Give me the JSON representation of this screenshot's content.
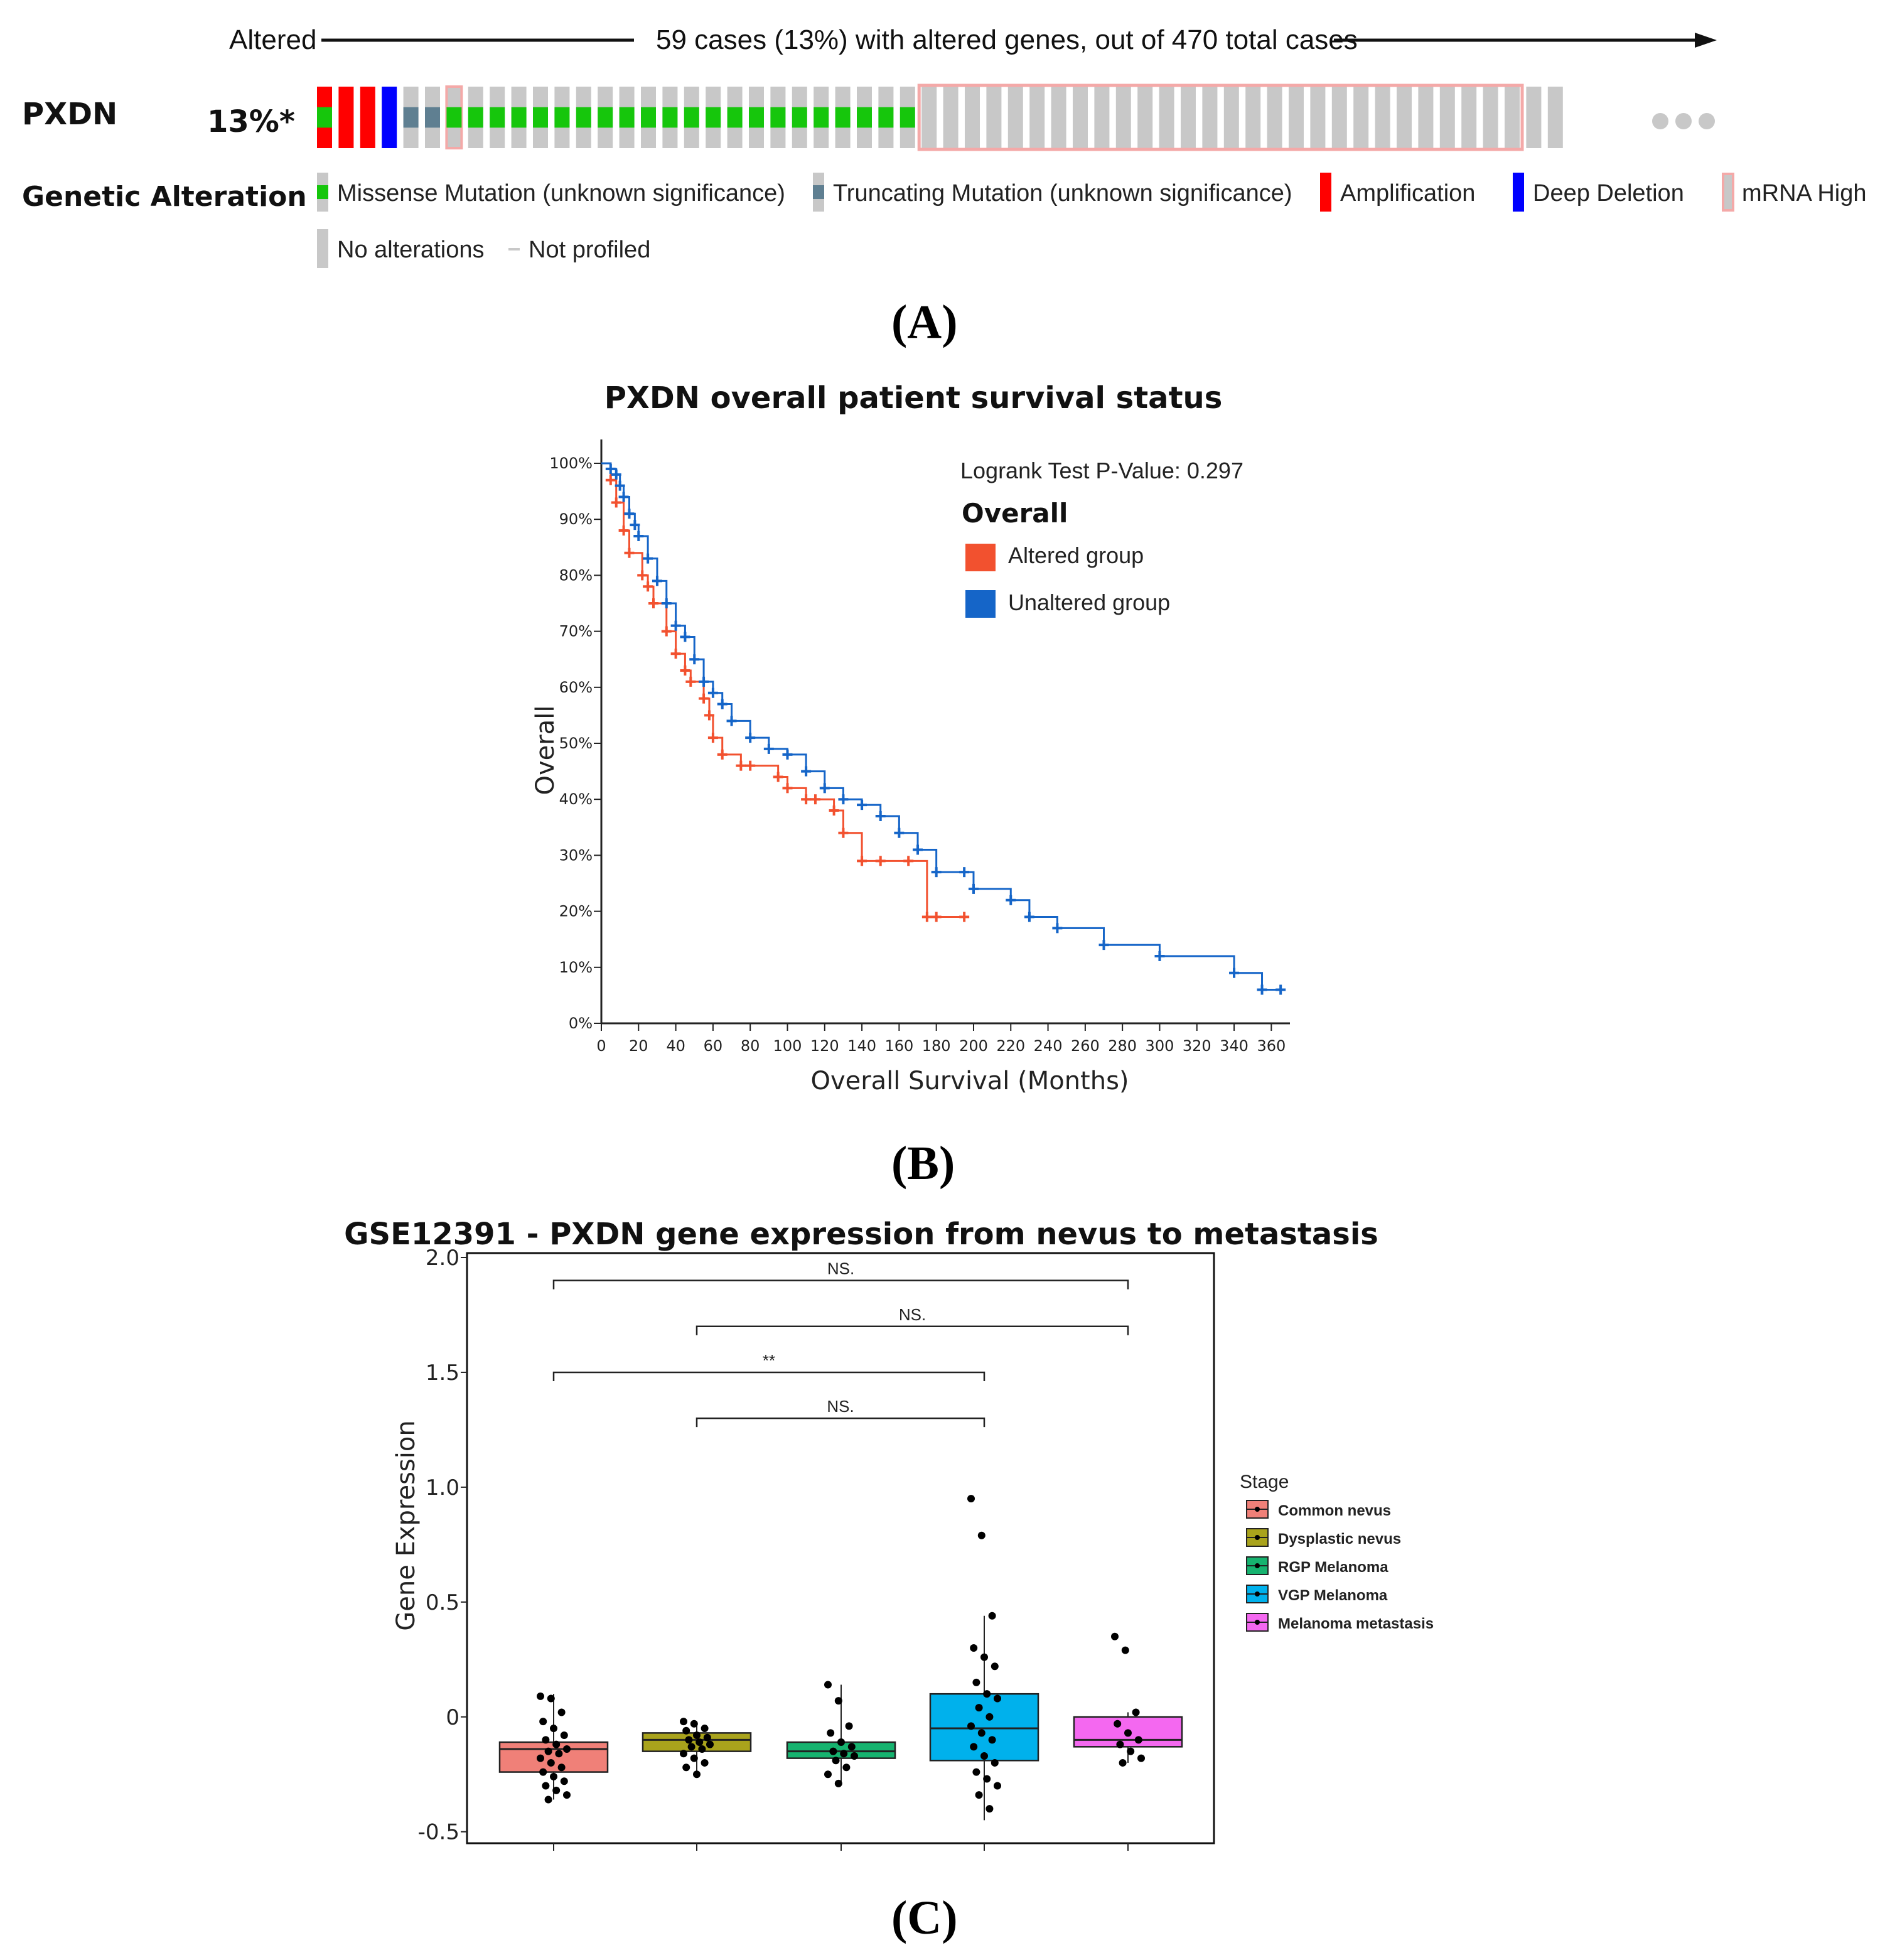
{
  "panelA": {
    "header": {
      "left": "Altered",
      "center": "59 cases (13%) with altered genes, out of 470 total cases"
    },
    "gene": "PXDN",
    "percent": "13%*",
    "section_label": "Genetic Alteration",
    "legend": [
      {
        "label": "Missense Mutation (unknown significance)",
        "kind": "missense",
        "color": "#16c60c"
      },
      {
        "label": "Truncating Mutation (unknown significance)",
        "kind": "truncating",
        "color": "#5f7f91"
      },
      {
        "label": "Amplification",
        "kind": "amplification",
        "color": "#ff0000"
      },
      {
        "label": "Deep Deletion",
        "kind": "deletion",
        "color": "#0000ff"
      },
      {
        "label": "mRNA High",
        "kind": "mrna",
        "color": "#f4a9a8"
      },
      {
        "label": "No alterations",
        "kind": "none",
        "color": "#c8c8c8"
      },
      {
        "label": "Not profiled",
        "kind": "notprofiled",
        "color": "#c8c8c8"
      }
    ],
    "track": [
      "amp_miss",
      "amp",
      "amp",
      "del",
      "trunc",
      "trunc",
      "mrna_miss",
      "miss",
      "miss",
      "miss",
      "miss",
      "miss",
      "miss",
      "miss",
      "miss",
      "miss",
      "miss",
      "miss",
      "miss",
      "miss",
      "miss",
      "miss",
      "miss",
      "miss",
      "miss",
      "miss",
      "miss",
      "miss",
      "mrna",
      "mrna",
      "mrna",
      "mrna",
      "mrna",
      "mrna",
      "mrna",
      "mrna",
      "mrna",
      "mrna",
      "mrna",
      "mrna",
      "mrna",
      "mrna",
      "mrna",
      "mrna",
      "mrna",
      "mrna",
      "mrna",
      "mrna",
      "mrna",
      "mrna",
      "mrna",
      "mrna",
      "mrna",
      "mrna",
      "mrna",
      "mrna",
      "none",
      "none"
    ],
    "label": "(A)"
  },
  "chart_data": [
    {
      "type": "line",
      "subtype": "kaplan-meier",
      "title": "PXDN overall patient survival status",
      "xlabel": "Overall Survival (Months)",
      "ylabel": "Overall",
      "xlim": [
        0,
        370
      ],
      "ylim": [
        0,
        100
      ],
      "xticks": [
        "0",
        "20",
        "40",
        "60",
        "80",
        "100",
        "120",
        "140",
        "160",
        "180",
        "200",
        "220",
        "240",
        "260",
        "280",
        "300",
        "320",
        "340",
        "360"
      ],
      "yticks": [
        "0%",
        "10%",
        "20%",
        "30%",
        "40%",
        "50%",
        "60%",
        "70%",
        "80%",
        "90%",
        "100%"
      ],
      "annotation": "Logrank Test P-Value: 0.297",
      "legend_title": "Overall",
      "series": [
        {
          "name": "Altered group",
          "color": "#f2512f",
          "x": [
            0,
            5,
            8,
            12,
            15,
            22,
            25,
            28,
            35,
            40,
            45,
            48,
            55,
            58,
            60,
            65,
            75,
            80,
            95,
            100,
            110,
            115,
            125,
            130,
            140,
            150,
            165,
            175,
            180,
            195
          ],
          "y": [
            100,
            97,
            93,
            88,
            84,
            80,
            78,
            75,
            70,
            66,
            63,
            61,
            58,
            55,
            51,
            48,
            46,
            46,
            44,
            42,
            40,
            40,
            38,
            34,
            29,
            29,
            29,
            19,
            19,
            19
          ]
        },
        {
          "name": "Unaltered group",
          "color": "#1565c8",
          "x": [
            0,
            5,
            8,
            10,
            12,
            15,
            18,
            20,
            25,
            30,
            35,
            40,
            45,
            50,
            55,
            60,
            65,
            70,
            80,
            90,
            100,
            110,
            120,
            130,
            140,
            150,
            160,
            170,
            180,
            195,
            200,
            220,
            230,
            245,
            270,
            300,
            340,
            355,
            365
          ],
          "y": [
            100,
            99,
            98,
            96,
            94,
            91,
            89,
            87,
            83,
            79,
            75,
            71,
            69,
            65,
            61,
            59,
            57,
            54,
            51,
            49,
            48,
            45,
            42,
            40,
            39,
            37,
            34,
            31,
            27,
            27,
            24,
            22,
            19,
            17,
            14,
            12,
            9,
            6,
            6
          ]
        }
      ],
      "label": "(B)"
    },
    {
      "type": "box",
      "title": "GSE12391 - PXDN gene expression from nevus to metastasis",
      "xlabel": "",
      "ylabel": "Gene Expression",
      "ylim": [
        -0.55,
        2.0
      ],
      "yticks": [
        "2.0",
        "1.5",
        "1.0",
        "0.5",
        "0",
        "-0.5"
      ],
      "legend_title": "Stage",
      "groups": [
        {
          "name": "Common nevus",
          "color": "#f08078",
          "q1": -0.24,
          "median": -0.14,
          "q3": -0.11,
          "whisker_low": -0.36,
          "whisker_high": 0.1,
          "points": [
            0.09,
            0.08,
            0.02,
            -0.02,
            -0.05,
            -0.08,
            -0.1,
            -0.12,
            -0.14,
            -0.15,
            -0.16,
            -0.18,
            -0.2,
            -0.22,
            -0.24,
            -0.26,
            -0.28,
            -0.3,
            -0.32,
            -0.34,
            -0.36
          ]
        },
        {
          "name": "Dysplastic nevus",
          "color": "#a9a31c",
          "q1": -0.15,
          "median": -0.1,
          "q3": -0.07,
          "whisker_low": -0.25,
          "whisker_high": -0.02,
          "points": [
            -0.02,
            -0.03,
            -0.05,
            -0.06,
            -0.08,
            -0.09,
            -0.1,
            -0.11,
            -0.12,
            -0.13,
            -0.14,
            -0.16,
            -0.18,
            -0.2,
            -0.22,
            -0.25
          ]
        },
        {
          "name": "RGP Melanoma",
          "color": "#16b36f",
          "q1": -0.18,
          "median": -0.15,
          "q3": -0.11,
          "whisker_low": -0.29,
          "whisker_high": 0.14,
          "points": [
            0.14,
            0.07,
            -0.04,
            -0.07,
            -0.11,
            -0.13,
            -0.15,
            -0.16,
            -0.17,
            -0.19,
            -0.22,
            -0.25,
            -0.29
          ]
        },
        {
          "name": "VGP Melanoma",
          "color": "#00b1ec",
          "q1": -0.19,
          "median": -0.05,
          "q3": 0.1,
          "whisker_low": -0.45,
          "whisker_high": 0.44,
          "points": [
            0.95,
            0.79,
            0.44,
            0.3,
            0.26,
            0.22,
            0.15,
            0.1,
            0.08,
            0.04,
            0.0,
            -0.04,
            -0.07,
            -0.1,
            -0.13,
            -0.17,
            -0.2,
            -0.24,
            -0.27,
            -0.3,
            -0.34,
            -0.4
          ]
        },
        {
          "name": "Melanoma metastasis",
          "color": "#f468f0",
          "q1": -0.13,
          "median": -0.1,
          "q3": 0.0,
          "whisker_low": -0.2,
          "whisker_high": 0.02,
          "points": [
            0.35,
            0.29,
            0.02,
            -0.03,
            -0.07,
            -0.1,
            -0.12,
            -0.15,
            -0.18,
            -0.2
          ]
        }
      ],
      "comparisons": [
        {
          "from": 0,
          "to": 4,
          "level": 1.9,
          "label": "NS."
        },
        {
          "from": 1,
          "to": 4,
          "level": 1.7,
          "label": "NS."
        },
        {
          "from": 0,
          "to": 3,
          "level": 1.5,
          "label": "**"
        },
        {
          "from": 1,
          "to": 3,
          "level": 1.3,
          "label": "NS."
        }
      ],
      "label": "(C)"
    }
  ]
}
